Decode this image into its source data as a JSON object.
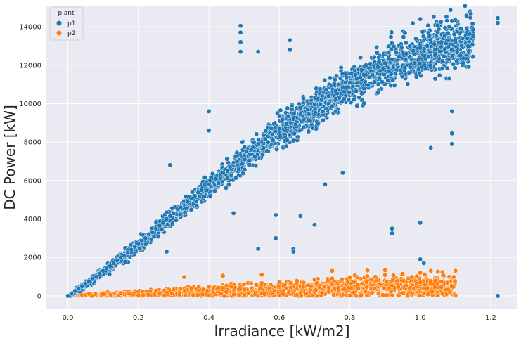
{
  "chart_data": {
    "type": "scatter",
    "xlabel": "Irradiance [kW/m2]",
    "ylabel": "DC Power [kW]",
    "xlim": [
      -0.061,
      1.276
    ],
    "ylim": [
      -700,
      15100
    ],
    "xticks": [
      "0.0",
      "0.2",
      "0.4",
      "0.6",
      "0.8",
      "1.0",
      "1.2"
    ],
    "xtick_values": [
      0.0,
      0.2,
      0.4,
      0.6,
      0.8,
      1.0,
      1.2
    ],
    "yticks": [
      "0",
      "2000",
      "4000",
      "6000",
      "8000",
      "10000",
      "12000",
      "14000"
    ],
    "ytick_values": [
      0,
      2000,
      4000,
      6000,
      8000,
      10000,
      12000,
      14000
    ],
    "grid": true,
    "background": "#eaeaf2",
    "legend": {
      "title": "plant",
      "placement": "top-left"
    },
    "series": [
      {
        "name": "p1",
        "color": "#1f77b4",
        "points": [
          [
            0.0,
            0
          ],
          [
            0.01,
            120
          ],
          [
            0.02,
            250
          ],
          [
            0.03,
            380
          ],
          [
            0.04,
            500
          ],
          [
            0.05,
            620
          ],
          [
            0.06,
            760
          ],
          [
            0.07,
            880
          ],
          [
            0.08,
            1000
          ],
          [
            0.09,
            1150
          ],
          [
            0.1,
            1300
          ],
          [
            0.11,
            1420
          ],
          [
            0.12,
            1550
          ],
          [
            0.13,
            1700
          ],
          [
            0.14,
            1850
          ],
          [
            0.15,
            2000
          ],
          [
            0.16,
            2100
          ],
          [
            0.17,
            2250
          ],
          [
            0.18,
            2400
          ],
          [
            0.19,
            2550
          ],
          [
            0.2,
            2700
          ],
          [
            0.21,
            2850
          ],
          [
            0.22,
            3000
          ],
          [
            0.23,
            3200
          ],
          [
            0.24,
            3300
          ],
          [
            0.25,
            3500
          ],
          [
            0.26,
            3650
          ],
          [
            0.27,
            3800
          ],
          [
            0.28,
            4000
          ],
          [
            0.29,
            4150
          ],
          [
            0.3,
            4300
          ],
          [
            0.32,
            4600
          ],
          [
            0.34,
            4900
          ],
          [
            0.36,
            5200
          ],
          [
            0.38,
            5500
          ],
          [
            0.4,
            5800
          ],
          [
            0.42,
            6100
          ],
          [
            0.44,
            6400
          ],
          [
            0.46,
            6700
          ],
          [
            0.48,
            7000
          ],
          [
            0.5,
            7300
          ],
          [
            0.52,
            7600
          ],
          [
            0.54,
            7900
          ],
          [
            0.56,
            8150
          ],
          [
            0.58,
            8400
          ],
          [
            0.6,
            8700
          ],
          [
            0.62,
            8950
          ],
          [
            0.64,
            9200
          ],
          [
            0.66,
            9450
          ],
          [
            0.68,
            9700
          ],
          [
            0.7,
            9950
          ],
          [
            0.72,
            10200
          ],
          [
            0.74,
            10400
          ],
          [
            0.76,
            10650
          ],
          [
            0.78,
            10850
          ],
          [
            0.8,
            11100
          ],
          [
            0.82,
            11300
          ],
          [
            0.84,
            11500
          ],
          [
            0.86,
            11700
          ],
          [
            0.88,
            11900
          ],
          [
            0.9,
            12100
          ],
          [
            0.92,
            12300
          ],
          [
            0.94,
            12450
          ],
          [
            0.96,
            12600
          ],
          [
            0.98,
            12750
          ],
          [
            1.0,
            12900
          ],
          [
            1.02,
            13000
          ],
          [
            1.04,
            13100
          ],
          [
            1.06,
            13200
          ],
          [
            1.08,
            13300
          ],
          [
            1.1,
            13350
          ],
          [
            1.12,
            13400
          ],
          [
            1.15,
            13500
          ],
          [
            0.49,
            14050
          ],
          [
            0.49,
            13700
          ],
          [
            0.49,
            13200
          ],
          [
            0.49,
            12700
          ],
          [
            0.54,
            12700
          ],
          [
            0.63,
            13300
          ],
          [
            0.63,
            12800
          ],
          [
            1.0,
            14400
          ],
          [
            1.09,
            14300
          ],
          [
            1.22,
            14450
          ],
          [
            1.22,
            14200
          ],
          [
            1.22,
            0
          ],
          [
            0.92,
            3500
          ],
          [
            0.92,
            3250
          ],
          [
            1.0,
            3800
          ],
          [
            1.0,
            1900
          ],
          [
            1.01,
            1700
          ],
          [
            0.64,
            2450
          ],
          [
            0.64,
            2300
          ],
          [
            0.54,
            2450
          ],
          [
            0.59,
            4200
          ],
          [
            0.47,
            4300
          ],
          [
            0.66,
            4150
          ],
          [
            0.73,
            5800
          ],
          [
            0.78,
            6400
          ],
          [
            1.09,
            7900
          ],
          [
            1.09,
            8450
          ],
          [
            1.03,
            7700
          ],
          [
            1.09,
            9600
          ],
          [
            0.28,
            2300
          ],
          [
            0.29,
            6800
          ],
          [
            0.4,
            8600
          ],
          [
            0.4,
            9600
          ],
          [
            0.7,
            3700
          ],
          [
            0.59,
            3000
          ]
        ]
      },
      {
        "name": "p2",
        "color": "#ff7f0e",
        "points": [
          [
            0.0,
            0
          ],
          [
            0.05,
            30
          ],
          [
            0.1,
            80
          ],
          [
            0.15,
            140
          ],
          [
            0.2,
            200
          ],
          [
            0.25,
            260
          ],
          [
            0.3,
            330
          ],
          [
            0.35,
            400
          ],
          [
            0.4,
            470
          ],
          [
            0.45,
            530
          ],
          [
            0.5,
            600
          ],
          [
            0.55,
            660
          ],
          [
            0.6,
            720
          ],
          [
            0.65,
            780
          ],
          [
            0.7,
            840
          ],
          [
            0.75,
            900
          ],
          [
            0.8,
            960
          ],
          [
            0.85,
            1020
          ],
          [
            0.9,
            1080
          ],
          [
            0.95,
            1140
          ],
          [
            1.0,
            1200
          ],
          [
            1.05,
            1260
          ],
          [
            1.1,
            1300
          ],
          [
            0.2,
            30
          ],
          [
            0.4,
            20
          ],
          [
            0.6,
            20
          ],
          [
            0.8,
            20
          ],
          [
            1.0,
            20
          ],
          [
            1.05,
            20
          ],
          [
            1.1,
            20
          ],
          [
            0.33,
            980
          ],
          [
            0.44,
            1050
          ],
          [
            0.55,
            1100
          ],
          [
            0.75,
            1300
          ],
          [
            0.85,
            1320
          ],
          [
            0.9,
            1330
          ],
          [
            1.03,
            1300
          ],
          [
            1.0,
            700
          ],
          [
            0.97,
            400
          ]
        ]
      }
    ]
  }
}
